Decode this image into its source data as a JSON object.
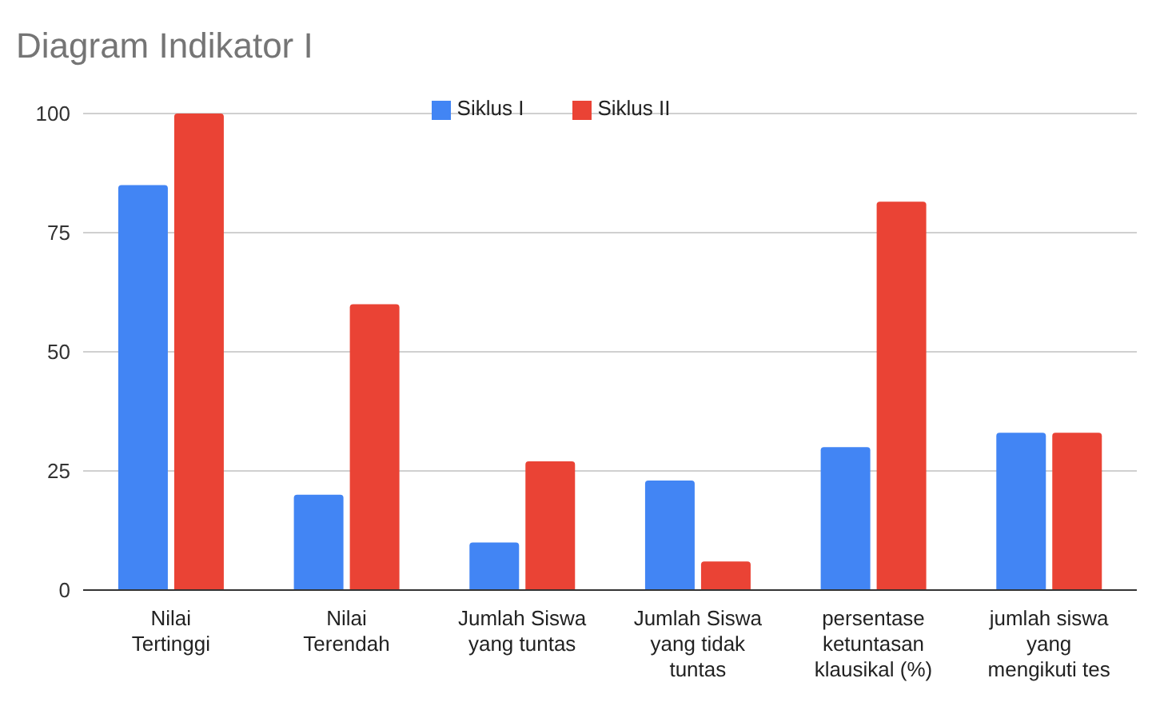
{
  "chart_data": {
    "type": "bar",
    "title": "Diagram Indikator I",
    "categories": [
      "Nilai Tertinggi",
      "Nilai Terendah",
      "Jumlah Siswa yang tuntas",
      "Jumlah Siswa yang tidak tuntas",
      "persentase ketuntasan klausikal (%)",
      "jumlah siswa yang mengikuti tes"
    ],
    "series": [
      {
        "name": "Siklus I",
        "color": "#4285f4",
        "values": [
          85,
          20,
          10,
          23,
          30,
          33
        ]
      },
      {
        "name": "Siklus II",
        "color": "#ea4335",
        "values": [
          100,
          60,
          27,
          6,
          81.5,
          33
        ]
      }
    ],
    "ylim": [
      0,
      100
    ],
    "yticks": [
      0,
      25,
      50,
      75,
      100
    ],
    "grid": "y",
    "legend": "top"
  }
}
